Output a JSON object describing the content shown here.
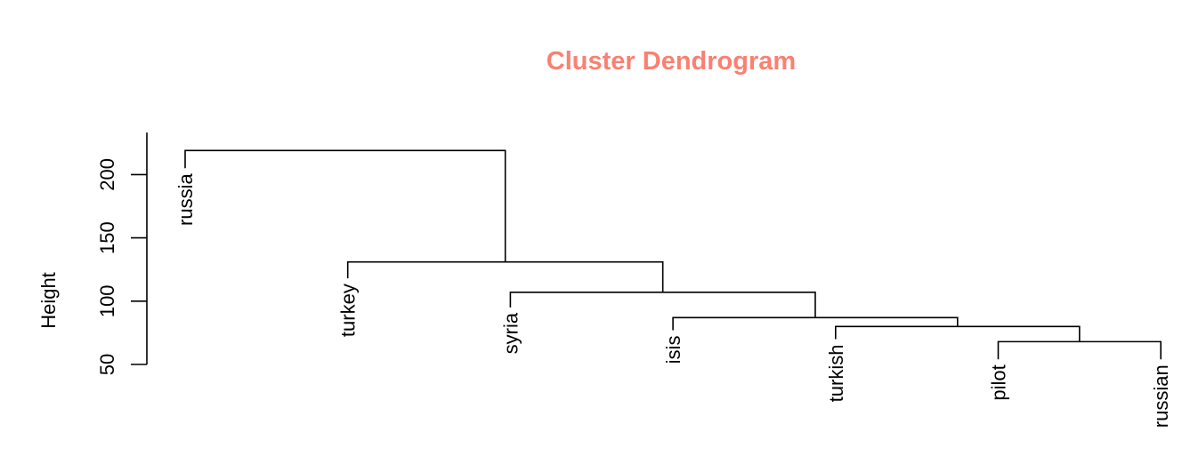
{
  "colors": {
    "title": "#FA8072",
    "lines": "#000000"
  },
  "chart_data": {
    "type": "dendrogram",
    "title": "Cluster Dendrogram",
    "ylabel": "Height",
    "yticks": [
      50,
      100,
      150,
      200
    ],
    "ylim": [
      50,
      222
    ],
    "leaves": [
      {
        "label": "russia",
        "height": 205
      },
      {
        "label": "turkey",
        "height": 118
      },
      {
        "label": "syria",
        "height": 95
      },
      {
        "label": "isis",
        "height": 77
      },
      {
        "label": "turkish",
        "height": 70
      },
      {
        "label": "pilot",
        "height": 54
      },
      {
        "label": "russian",
        "height": 54
      }
    ],
    "merges": [
      {
        "left": "leaf:5",
        "right": "leaf:6",
        "height": 68
      },
      {
        "left": "leaf:4",
        "right": "node:0",
        "height": 80
      },
      {
        "left": "leaf:3",
        "right": "node:1",
        "height": 87
      },
      {
        "left": "leaf:2",
        "right": "node:2",
        "height": 107
      },
      {
        "left": "leaf:1",
        "right": "node:3",
        "height": 131
      },
      {
        "left": "leaf:0",
        "right": "node:4",
        "height": 219
      }
    ]
  }
}
